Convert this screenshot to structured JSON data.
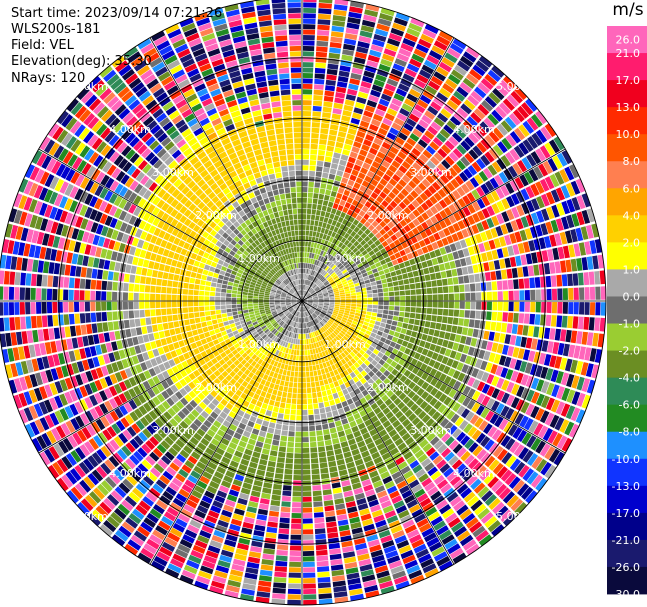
{
  "header": {
    "start_time": "Start time: 2023/09/14 07:21:26",
    "instrument": "WLS200s-181",
    "field": "Field: VEL",
    "elevation": "Elevation(deg): 35.30",
    "nrays": "NRays: 120"
  },
  "colorbar": {
    "unit": "m/s",
    "ticks": [
      "26.0",
      "21.0",
      "17.0",
      "13.0",
      "10.0",
      "8.0",
      "6.0",
      "4.0",
      "2.0",
      "1.0",
      "0.0",
      "-1.0",
      "-2.0",
      "-4.0",
      "-6.0",
      "-8.0",
      "-10.0",
      "-13.0",
      "-17.0",
      "-21.0",
      "-26.0",
      "-30.0"
    ],
    "colors": [
      "#ff66bb",
      "#ff1c6e",
      "#f0001e",
      "#ff2a00",
      "#ff5500",
      "#ff7f50",
      "#ffa500",
      "#ffd000",
      "#ffff00",
      "#a9a9a9",
      "#6e6e6e",
      "#9acd32",
      "#6b8e23",
      "#2e8b57",
      "#228b22",
      "#1e90ff",
      "#1034ff",
      "#0000cd",
      "#00008b",
      "#1a1a6e",
      "#0a0a3c"
    ]
  },
  "chart_data": {
    "type": "ppi_polar",
    "field": "VEL",
    "units": "m/s",
    "nrays": 120,
    "max_range_km": 5.0,
    "range_ring_labels_km": [
      "1.00km",
      "2.00km",
      "3.00km",
      "4.00km",
      "5.00km"
    ],
    "range_rings_km": [
      1,
      2,
      3,
      4,
      5
    ],
    "spokes_deg": [
      0,
      30,
      60,
      90,
      120,
      150,
      180,
      210,
      240,
      270,
      300,
      330
    ],
    "vmin": -30.0,
    "vmax": 30.0,
    "pattern": "Coherent velocity swirl within ~3 km (yellow/green, near-zero to +/-6 m/s), orange positive region to the NE at 2-3.5 km, noisy multicolor values beyond ~3.5 km"
  }
}
